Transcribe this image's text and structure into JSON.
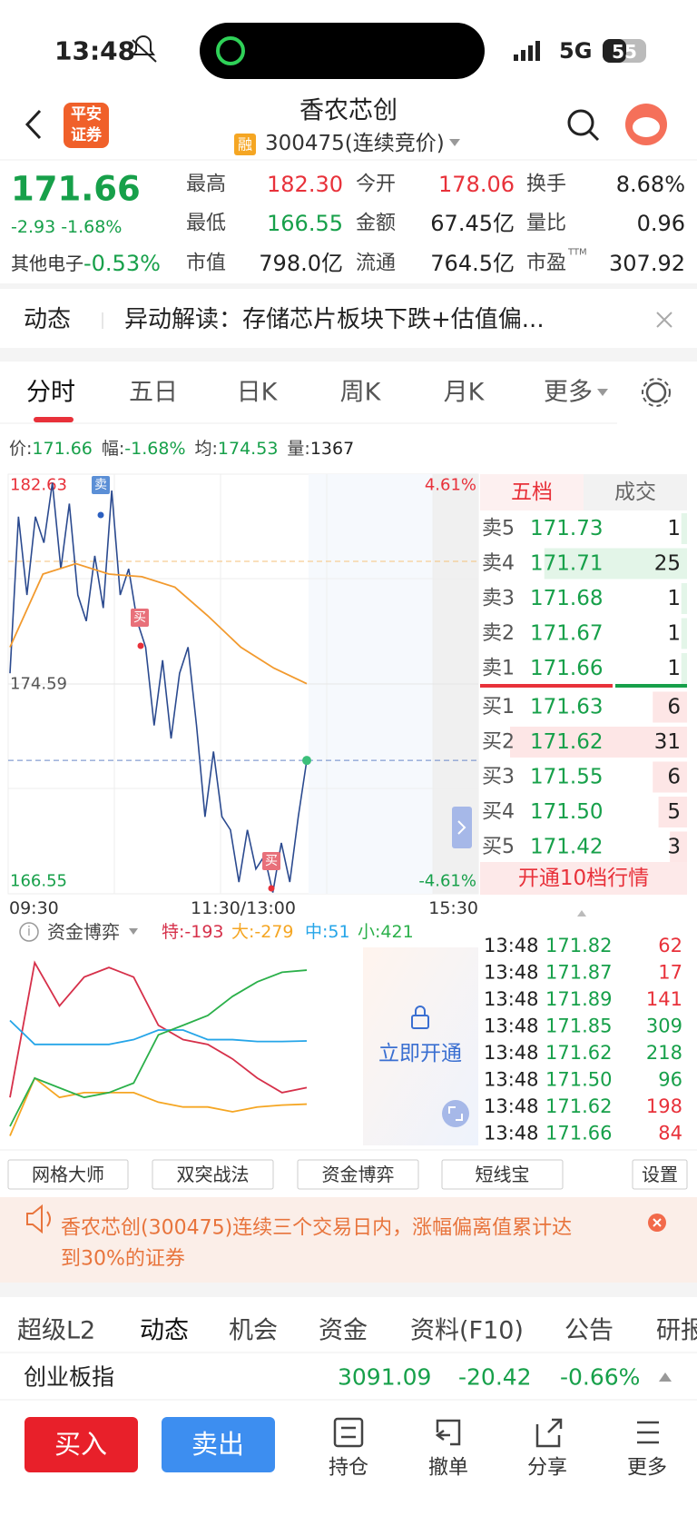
{
  "status_bar": {
    "time": "13:48",
    "network": "5G",
    "battery": "55"
  },
  "header": {
    "logo": [
      "平安",
      "证券"
    ],
    "title": "香农芯创",
    "badge": "融",
    "subtitle": "300475(连续竞价)"
  },
  "quote": {
    "price": "171.66",
    "change": "-2.93 -1.68%",
    "sector": "其他电子",
    "sector_change": "-0.53%",
    "stats": [
      {
        "label": "最高",
        "value": "182.30",
        "color": "#e8313a"
      },
      {
        "label": "今开",
        "value": "178.06",
        "color": "#e8313a"
      },
      {
        "label": "换手",
        "value": "8.68%",
        "color": "#222222"
      },
      {
        "label": "最低",
        "value": "166.55",
        "color": "#17a04a"
      },
      {
        "label": "金额",
        "value": "67.45亿",
        "color": "#222222"
      },
      {
        "label": "量比",
        "value": "0.96",
        "color": "#222222"
      },
      {
        "label": "市值",
        "value": "798.0亿",
        "color": "#222222"
      },
      {
        "label": "流通",
        "value": "764.5亿",
        "color": "#222222"
      },
      {
        "label": "市盈",
        "sup": "TTM",
        "value": "307.92",
        "color": "#222222"
      }
    ]
  },
  "news": {
    "tag": "动态",
    "text": "异动解读：存储芯片板块下跌+估值偏..."
  },
  "period_tabs": [
    "分时",
    "五日",
    "日K",
    "周K",
    "月K",
    "更多"
  ],
  "info_line": [
    {
      "label": "价:",
      "value": "171.66"
    },
    {
      "label": "幅:",
      "value": "-1.68%"
    },
    {
      "label": "均:",
      "value": "174.53"
    },
    {
      "label": "量:",
      "value": "1367"
    }
  ],
  "intraday_chart": {
    "type": "line",
    "ylim": [
      166.55,
      182.63
    ],
    "yticks": [
      166.55,
      174.59,
      182.63
    ],
    "y2lim": [
      -4.61,
      4.61
    ],
    "y2ticks": [
      {
        "value": -4.61,
        "label": "-4.61%"
      },
      {
        "value": 4.61,
        "label": "4.61%"
      }
    ],
    "x_labels": [
      "09:30",
      "11:30/13:00",
      "15:30"
    ],
    "series": [
      {
        "color": "#2b4a8f",
        "values": [
          175,
          181,
          178,
          181,
          180,
          182.3,
          179,
          181.5,
          178,
          177,
          179.5,
          177.5,
          182,
          178,
          179,
          177,
          176,
          173,
          175.5,
          172.5,
          175,
          176,
          173,
          169.5,
          172,
          169.5,
          169,
          167,
          169,
          167.5,
          168,
          166.6,
          168.5,
          167,
          169.5,
          171.66
        ]
      },
      {
        "color": "#f29a2e",
        "values": [
          176,
          178.8,
          179.2,
          178.8,
          178.7,
          178.3,
          177.2,
          176,
          175.2,
          174.6
        ]
      }
    ]
  },
  "order_book": {
    "tabs": [
      "五档",
      "成交"
    ],
    "rows": [
      {
        "label": "卖5",
        "price": "171.73",
        "volume": 1
      },
      {
        "label": "卖4",
        "price": "171.71",
        "volume": 25
      },
      {
        "label": "卖3",
        "price": "171.68",
        "volume": 1
      },
      {
        "label": "卖2",
        "price": "171.67",
        "volume": 1
      },
      {
        "label": "卖1",
        "price": "171.66",
        "volume": 1
      },
      {
        "label": "买1",
        "price": "171.63",
        "volume": 6
      },
      {
        "label": "买2",
        "price": "171.62",
        "volume": 31
      },
      {
        "label": "买3",
        "price": "171.55",
        "volume": 6
      },
      {
        "label": "买4",
        "price": "171.50",
        "volume": 5
      },
      {
        "label": "买5",
        "price": "171.42",
        "volume": 3
      }
    ],
    "upgrade": "开通10档行情"
  },
  "flow_chart": {
    "type": "line",
    "title": "资金博弈",
    "ylim": [
      -490,
      540
    ],
    "series": [
      {
        "name": "特:-193",
        "color": "#d6304a",
        "values": [
          -244,
          460,
          234,
          385,
          435,
          385,
          133,
          58,
          33,
          -43,
          -143,
          -219,
          -193
        ]
      },
      {
        "name": "大:-279",
        "color": "#f5a623",
        "values": [
          -445,
          -143,
          -244,
          -219,
          -219,
          -219,
          -269,
          -294,
          -294,
          -319,
          -294,
          -284,
          -279
        ]
      },
      {
        "name": "中:51",
        "color": "#25a5e8",
        "values": [
          158,
          33,
          33,
          33,
          33,
          58,
          108,
          108,
          58,
          58,
          48,
          48,
          51
        ]
      },
      {
        "name": "小:421",
        "color": "#2bb04a",
        "values": [
          -395,
          -143,
          -194,
          -244,
          -219,
          -169,
          83,
          133,
          184,
          284,
          360,
          410,
          421
        ]
      }
    ],
    "overlay": "立即开通"
  },
  "trades": [
    {
      "time": "13:48",
      "price": "171.82",
      "volume": 62,
      "color": "#e8313a"
    },
    {
      "time": "13:48",
      "price": "171.87",
      "volume": 17,
      "color": "#e8313a"
    },
    {
      "time": "13:48",
      "price": "171.89",
      "volume": 141,
      "color": "#e8313a"
    },
    {
      "time": "13:48",
      "price": "171.85",
      "volume": 309,
      "color": "#17a04a"
    },
    {
      "time": "13:48",
      "price": "171.62",
      "volume": 218,
      "color": "#17a04a"
    },
    {
      "time": "13:48",
      "price": "171.50",
      "volume": 96,
      "color": "#17a04a"
    },
    {
      "time": "13:48",
      "price": "171.62",
      "volume": 198,
      "color": "#e8313a"
    },
    {
      "time": "13:48",
      "price": "171.66",
      "volume": 84,
      "color": "#e8313a"
    }
  ],
  "tools": [
    "网格大师",
    "双突战法",
    "资金博弈",
    "短线宝",
    "设置"
  ],
  "notice": [
    "香农芯创(300475)连续三个交易日内，涨幅偏离值累计达",
    "到30%的证券"
  ],
  "bottom_tabs": [
    "超级L2",
    "动态",
    "机会",
    "资金",
    "资料(F10)",
    "公告",
    "研报"
  ],
  "index": {
    "name": "创业板指",
    "value": "3091.09",
    "change": "-20.42",
    "change_pct": "-0.66%"
  },
  "actions": {
    "buy": "买入",
    "sell": "卖出",
    "items": [
      "持仓",
      "撤单",
      "分享",
      "更多"
    ]
  }
}
